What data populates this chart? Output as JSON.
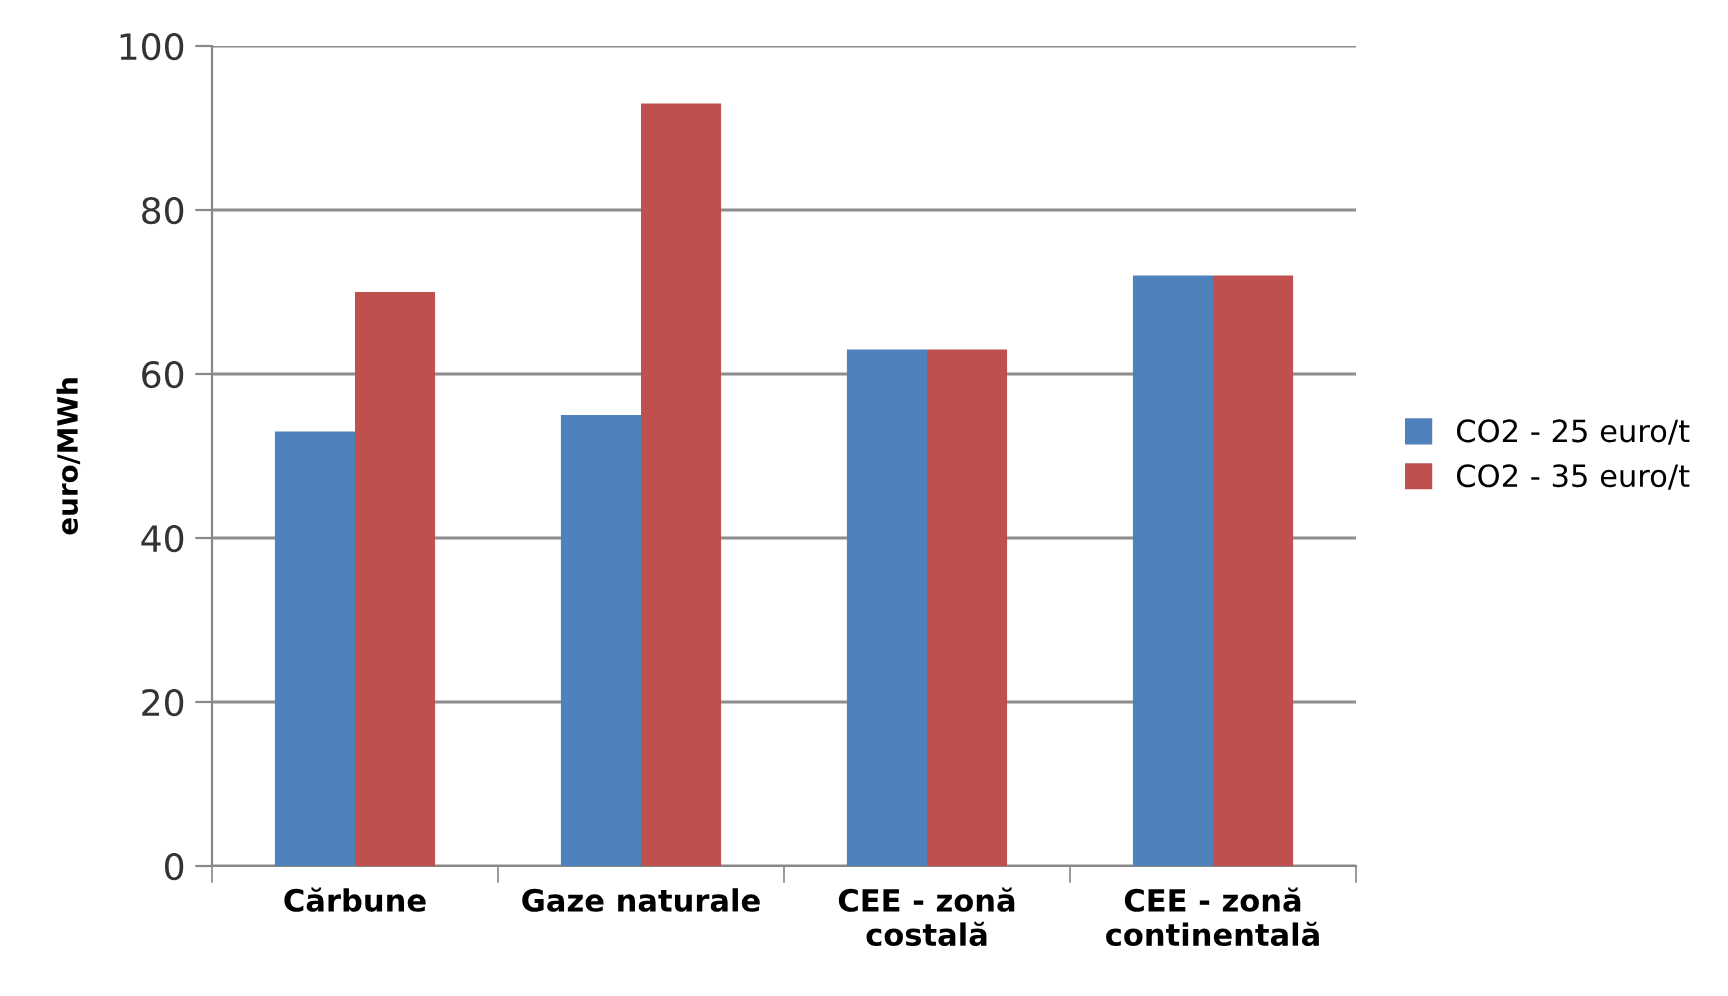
{
  "chart_data": {
    "type": "bar",
    "ylabel": "euro/MWh",
    "categories": [
      "Cărbune",
      "Gaze naturale",
      "CEE - zonă\ncostală",
      "CEE - zonă\ncontinentală"
    ],
    "series": [
      {
        "name": "CO2 - 25 euro/t",
        "color": "#4f81bd",
        "values": [
          53,
          55,
          63,
          72
        ]
      },
      {
        "name": "CO2 - 35 euro/t",
        "color": "#c0504d",
        "values": [
          70,
          93,
          63,
          72
        ]
      }
    ],
    "ylim": [
      0,
      100
    ],
    "yticks": [
      0,
      20,
      40,
      60,
      80,
      100
    ],
    "grid": "y",
    "legend": "right"
  }
}
